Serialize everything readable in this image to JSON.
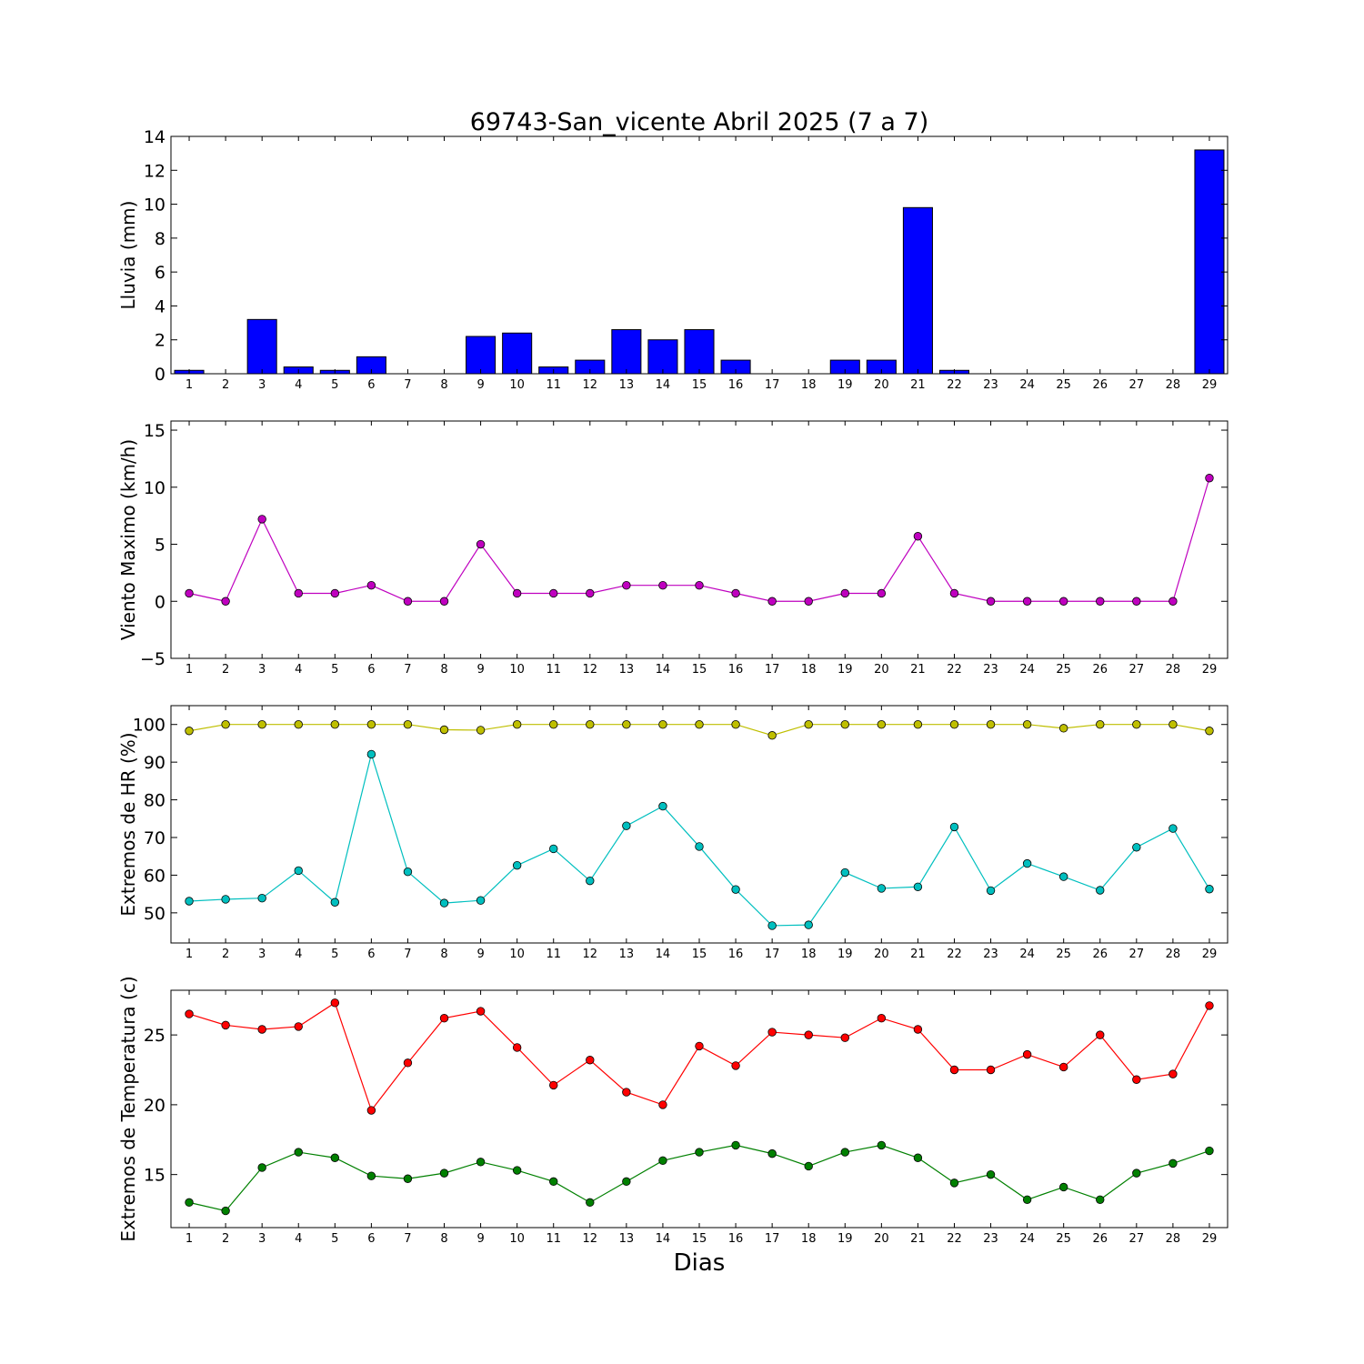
{
  "chart_data": [
    {
      "type": "bar",
      "title": "69743-San_vicente Abril 2025  (7 a 7)",
      "xlabel": "",
      "ylabel": "Lluvia (mm)",
      "ylim": [
        0,
        14
      ],
      "yticks": [
        0,
        2,
        4,
        6,
        8,
        10,
        12,
        14
      ],
      "categories": [
        1,
        2,
        3,
        4,
        5,
        6,
        7,
        8,
        9,
        10,
        11,
        12,
        13,
        14,
        15,
        16,
        17,
        18,
        19,
        20,
        21,
        22,
        23,
        24,
        25,
        26,
        27,
        28,
        29
      ],
      "values": [
        0.2,
        0,
        3.2,
        0.4,
        0.2,
        1.0,
        0,
        0,
        2.2,
        2.4,
        0.4,
        0.8,
        2.6,
        2.0,
        2.6,
        0.8,
        0,
        0,
        0.8,
        0.8,
        9.8,
        0.2,
        0,
        0,
        0,
        0,
        0,
        0,
        13.2
      ],
      "colors": {
        "bar": "#0000ff"
      },
      "grid": false
    },
    {
      "type": "line",
      "title": "",
      "xlabel": "",
      "ylabel": "Viento Maximo (km/h)",
      "ylim": [
        -5,
        15.8
      ],
      "yticks": [
        -5,
        0,
        5,
        10,
        15
      ],
      "ytick_labels": [
        "−5",
        "0",
        "5",
        "10",
        "15"
      ],
      "x": [
        1,
        2,
        3,
        4,
        5,
        6,
        7,
        8,
        9,
        10,
        11,
        12,
        13,
        14,
        15,
        16,
        17,
        18,
        19,
        20,
        21,
        22,
        23,
        24,
        25,
        26,
        27,
        28,
        29
      ],
      "series": [
        {
          "values": [
            0.7,
            0,
            7.2,
            0.7,
            0.7,
            1.4,
            0,
            0,
            5.0,
            0.7,
            0.7,
            0.7,
            1.4,
            1.4,
            1.4,
            0.7,
            0,
            0,
            0.7,
            0.7,
            5.7,
            0.7,
            0,
            0,
            0,
            0,
            0,
            0,
            10.8
          ],
          "color": "#bf00bf"
        }
      ],
      "grid": false
    },
    {
      "type": "line",
      "title": "",
      "xlabel": "",
      "ylabel": "Extremos de HR (%)",
      "ylim": [
        42,
        105
      ],
      "yticks": [
        50,
        60,
        70,
        80,
        90,
        100
      ],
      "x": [
        1,
        2,
        3,
        4,
        5,
        6,
        7,
        8,
        9,
        10,
        11,
        12,
        13,
        14,
        15,
        16,
        17,
        18,
        19,
        20,
        21,
        22,
        23,
        24,
        25,
        26,
        27,
        28,
        29
      ],
      "series": [
        {
          "values": [
            98.3,
            100,
            100,
            100,
            100,
            100,
            100,
            98.6,
            98.5,
            100,
            100,
            100,
            100,
            100,
            100,
            100,
            97.1,
            100,
            100,
            100,
            100,
            100,
            100,
            100,
            99.0,
            100,
            100,
            100,
            98.3
          ],
          "color": "#bfbf00"
        },
        {
          "values": [
            53.1,
            53.6,
            53.9,
            61.2,
            52.8,
            92.1,
            60.9,
            52.6,
            53.3,
            62.6,
            67.0,
            58.5,
            73.1,
            78.3,
            67.6,
            56.2,
            46.6,
            46.8,
            60.7,
            56.5,
            56.9,
            72.8,
            55.9,
            63.1,
            59.6,
            56.0,
            67.4,
            72.4,
            56.3
          ],
          "color": "#00bfbf"
        }
      ],
      "grid": false
    },
    {
      "type": "line",
      "title": "",
      "xlabel": "Dias",
      "ylabel": "Extremos de Temperatura (c)",
      "ylim": [
        11.2,
        28.2
      ],
      "yticks": [
        15,
        20,
        25
      ],
      "x": [
        1,
        2,
        3,
        4,
        5,
        6,
        7,
        8,
        9,
        10,
        11,
        12,
        13,
        14,
        15,
        16,
        17,
        18,
        19,
        20,
        21,
        22,
        23,
        24,
        25,
        26,
        27,
        28,
        29
      ],
      "series": [
        {
          "values": [
            26.5,
            25.7,
            25.4,
            25.6,
            27.3,
            19.6,
            23.0,
            26.2,
            26.7,
            24.1,
            21.4,
            23.2,
            20.9,
            20.0,
            24.2,
            22.8,
            25.2,
            25.0,
            24.8,
            26.2,
            25.4,
            22.5,
            22.5,
            23.6,
            22.7,
            25.0,
            21.8,
            22.2,
            27.1
          ],
          "color": "#ff0000"
        },
        {
          "values": [
            13.0,
            12.4,
            15.5,
            16.6,
            16.2,
            14.9,
            14.7,
            15.1,
            15.9,
            15.3,
            14.5,
            13.0,
            14.5,
            16.0,
            16.6,
            17.1,
            16.5,
            15.6,
            16.6,
            17.1,
            16.2,
            14.4,
            15.0,
            13.2,
            14.1,
            13.2,
            15.1,
            15.8,
            16.7
          ],
          "color": "#008000"
        }
      ],
      "grid": false
    }
  ]
}
